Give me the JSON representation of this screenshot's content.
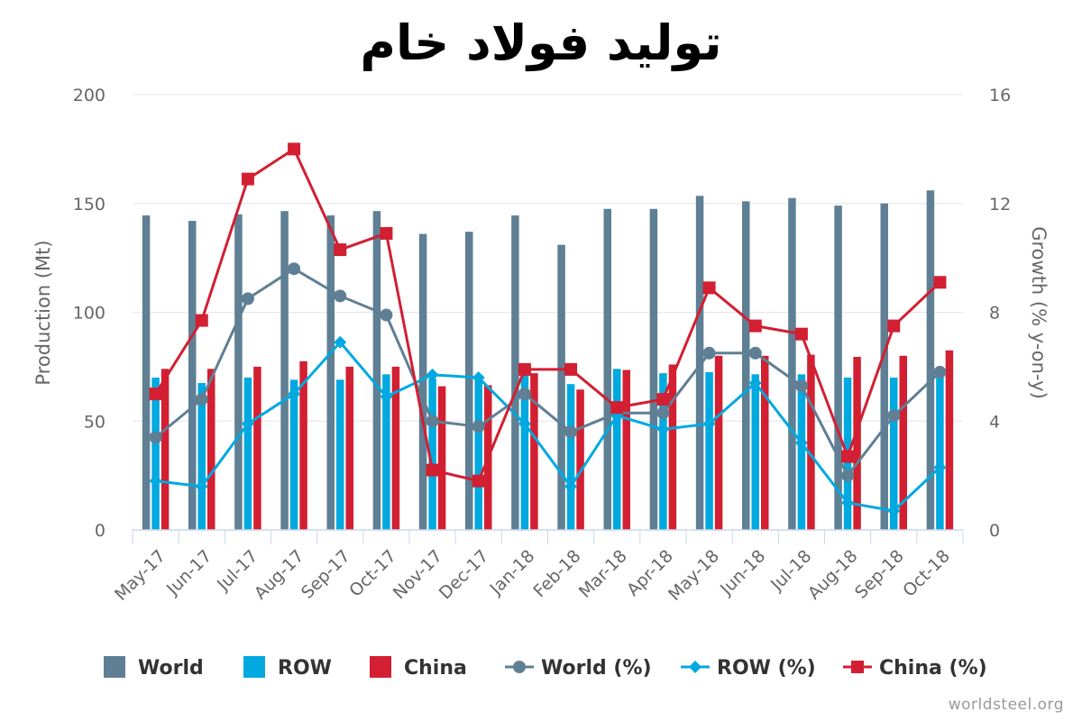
{
  "chart_data": {
    "type": "bar",
    "title": "تولید فولاد خام",
    "ylabel": "Production (Mt)",
    "y2label": "Growth (% y-on-y)",
    "ylim": [
      0,
      200
    ],
    "y2lim": [
      0,
      16
    ],
    "yticks": [
      "0",
      "50",
      "100",
      "150",
      "200"
    ],
    "y2ticks": [
      "0",
      "4",
      "8",
      "12",
      "16"
    ],
    "grid": true,
    "legend_position": "bottom",
    "categories": [
      "May-17",
      "Jun-17",
      "Jul-17",
      "Aug-17",
      "Sep-17",
      "Oct-17",
      "Nov-17",
      "Dec-17",
      "Jan-18",
      "Feb-18",
      "Mar-18",
      "Apr-18",
      "May-18",
      "Jun-18",
      "Jul-18",
      "Aug-18",
      "Sep-18",
      "Oct-18"
    ],
    "bar_series": [
      {
        "name": "World",
        "color": "#5f7f94",
        "values": [
          144.5,
          142,
          145,
          146.5,
          144.5,
          146.5,
          136,
          137,
          144.5,
          131,
          147.5,
          147.5,
          153.5,
          151,
          152.5,
          149,
          150,
          156
        ]
      },
      {
        "name": "ROW",
        "color": "#00a9e0",
        "values": [
          70,
          67.5,
          70,
          69,
          69,
          71.5,
          69.5,
          70,
          71.5,
          67,
          74,
          72,
          72.5,
          71.5,
          71.5,
          70,
          70,
          74
        ]
      },
      {
        "name": "China",
        "color": "#d21f32",
        "values": [
          74,
          74,
          75,
          77.5,
          75,
          75,
          66,
          66.5,
          72,
          64.5,
          73.5,
          76,
          80,
          80,
          80.5,
          79.5,
          80,
          82.5
        ]
      }
    ],
    "line_series": [
      {
        "name": "World (%)",
        "color": "#5f7f94",
        "marker": "circle",
        "values": [
          3.4,
          4.8,
          8.5,
          9.6,
          8.6,
          7.9,
          4.0,
          3.8,
          5.0,
          3.6,
          4.3,
          4.3,
          6.5,
          6.5,
          5.3,
          2.0,
          4.2,
          5.8
        ]
      },
      {
        "name": "ROW (%)",
        "color": "#00a9e0",
        "marker": "diamond",
        "values": [
          1.8,
          1.6,
          3.9,
          5.0,
          6.9,
          4.9,
          5.7,
          5.6,
          3.9,
          1.6,
          4.2,
          3.7,
          3.9,
          5.4,
          3.2,
          1.0,
          0.7,
          2.3
        ]
      },
      {
        "name": "China (%)",
        "color": "#d21f32",
        "marker": "square",
        "values": [
          5.0,
          7.7,
          12.9,
          14.0,
          10.3,
          10.9,
          2.2,
          1.8,
          5.9,
          5.9,
          4.5,
          4.8,
          8.9,
          7.5,
          7.2,
          2.7,
          7.5,
          9.1
        ]
      }
    ]
  },
  "credit": "worldsteel.org"
}
